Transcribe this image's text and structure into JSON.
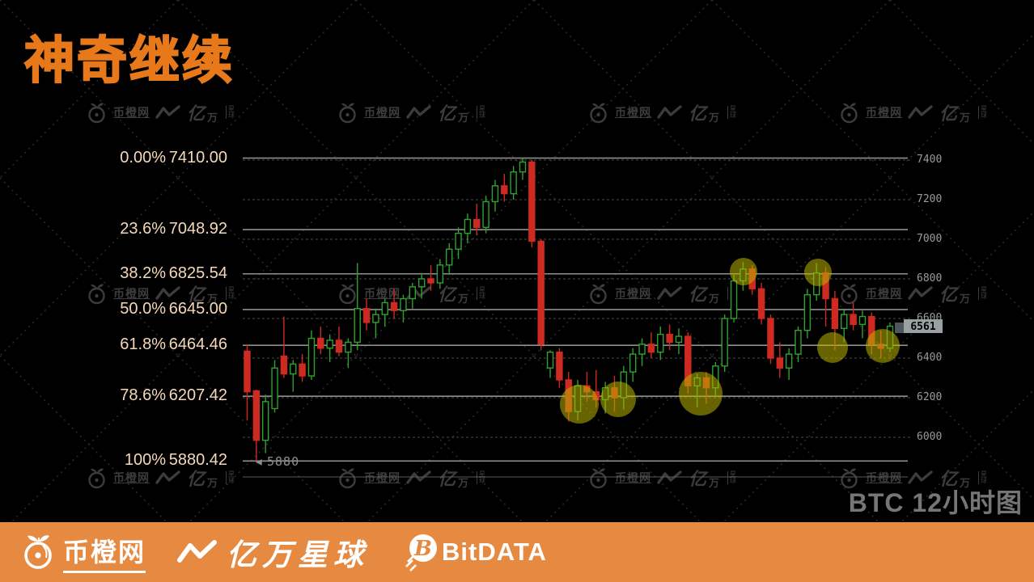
{
  "title": "神奇继续",
  "chart_label": "BTC 12小时图",
  "low_marker": "5880",
  "price_tag": "6561",
  "watermark": {
    "site": "币橙网",
    "yi": "亿",
    "wan": "万",
    "star": "星",
    "qiu": "球"
  },
  "fib_levels": [
    {
      "pct": "0.00%",
      "price": "7410.00",
      "value": 7410.0
    },
    {
      "pct": "23.6%",
      "price": "7048.92",
      "value": 7048.92
    },
    {
      "pct": "38.2%",
      "price": "6825.54",
      "value": 6825.54
    },
    {
      "pct": "50.0%",
      "price": "6645.00",
      "value": 6645.0
    },
    {
      "pct": "61.8%",
      "price": "6464.46",
      "value": 6464.46
    },
    {
      "pct": "78.6%",
      "price": "6207.42",
      "value": 6207.42
    },
    {
      "pct": "100%",
      "price": "5880.42",
      "value": 5880.42
    }
  ],
  "chart_data": {
    "type": "candlestick",
    "symbol": "BTC",
    "interval": "12小时",
    "ylim": [
      5880,
      7410
    ],
    "grid_ticks": [
      7400,
      7200,
      7000,
      6800,
      6600,
      6400,
      6200,
      6000
    ],
    "last_close": 6561,
    "candles": [
      [
        6435,
        6470,
        6085,
        6230
      ],
      [
        6235,
        6240,
        5882,
        5985
      ],
      [
        5985,
        6215,
        5920,
        6180
      ],
      [
        6145,
        6390,
        6125,
        6350
      ],
      [
        6410,
        6610,
        6300,
        6320
      ],
      [
        6320,
        6390,
        6230,
        6370
      ],
      [
        6370,
        6420,
        6280,
        6310
      ],
      [
        6310,
        6540,
        6290,
        6500
      ],
      [
        6500,
        6560,
        6420,
        6450
      ],
      [
        6450,
        6520,
        6380,
        6490
      ],
      [
        6490,
        6560,
        6410,
        6430
      ],
      [
        6430,
        6500,
        6350,
        6480
      ],
      [
        6480,
        6880,
        6440,
        6650
      ],
      [
        6650,
        6700,
        6540,
        6580
      ],
      [
        6580,
        6650,
        6500,
        6620
      ],
      [
        6620,
        6700,
        6560,
        6680
      ],
      [
        6680,
        6750,
        6600,
        6640
      ],
      [
        6640,
        6720,
        6580,
        6700
      ],
      [
        6700,
        6780,
        6650,
        6760
      ],
      [
        6760,
        6830,
        6700,
        6800
      ],
      [
        6800,
        6870,
        6740,
        6780
      ],
      [
        6780,
        6900,
        6750,
        6870
      ],
      [
        6870,
        6980,
        6820,
        6950
      ],
      [
        6950,
        7060,
        6900,
        7030
      ],
      [
        7030,
        7130,
        6980,
        7100
      ],
      [
        7100,
        7180,
        7020,
        7060
      ],
      [
        7060,
        7220,
        7030,
        7190
      ],
      [
        7190,
        7300,
        7140,
        7270
      ],
      [
        7270,
        7330,
        7190,
        7230
      ],
      [
        7230,
        7370,
        7200,
        7340
      ],
      [
        7340,
        7410,
        7300,
        7390
      ],
      [
        7390,
        7400,
        6960,
        6990
      ],
      [
        6990,
        7000,
        6440,
        6470
      ],
      [
        6350,
        6440,
        6300,
        6430
      ],
      [
        6430,
        6450,
        6250,
        6290
      ],
      [
        6290,
        6330,
        6080,
        6130
      ],
      [
        6130,
        6290,
        6085,
        6260
      ],
      [
        6260,
        6330,
        6180,
        6230
      ],
      [
        6230,
        6340,
        6150,
        6190
      ],
      [
        6190,
        6280,
        6120,
        6250
      ],
      [
        6250,
        6310,
        6130,
        6200
      ],
      [
        6200,
        6360,
        6140,
        6330
      ],
      [
        6330,
        6450,
        6280,
        6420
      ],
      [
        6420,
        6500,
        6360,
        6470
      ],
      [
        6470,
        6530,
        6400,
        6430
      ],
      [
        6430,
        6560,
        6390,
        6520
      ],
      [
        6520,
        6570,
        6440,
        6480
      ],
      [
        6480,
        6550,
        6420,
        6510
      ],
      [
        6510,
        6530,
        6220,
        6260
      ],
      [
        6260,
        6320,
        6150,
        6300
      ],
      [
        6300,
        6330,
        6170,
        6250
      ],
      [
        6250,
        6380,
        6200,
        6360
      ],
      [
        6360,
        6620,
        6330,
        6600
      ],
      [
        6600,
        6820,
        6580,
        6790
      ],
      [
        6790,
        6885,
        6740,
        6850
      ],
      [
        6850,
        6870,
        6720,
        6750
      ],
      [
        6750,
        6780,
        6570,
        6600
      ],
      [
        6600,
        6620,
        6370,
        6400
      ],
      [
        6400,
        6480,
        6300,
        6350
      ],
      [
        6350,
        6450,
        6290,
        6420
      ],
      [
        6420,
        6560,
        6380,
        6540
      ],
      [
        6540,
        6750,
        6500,
        6720
      ],
      [
        6720,
        6880,
        6690,
        6830
      ],
      [
        6830,
        6860,
        6560,
        6700
      ],
      [
        6700,
        6740,
        6440,
        6550
      ],
      [
        6550,
        6650,
        6480,
        6620
      ],
      [
        6620,
        6680,
        6540,
        6570
      ],
      [
        6570,
        6640,
        6500,
        6610
      ],
      [
        6610,
        6630,
        6420,
        6470
      ],
      [
        6470,
        6540,
        6400,
        6450
      ],
      [
        6450,
        6580,
        6430,
        6561
      ]
    ],
    "highlight_circles": [
      {
        "x": 716,
        "y": 500,
        "r": 24
      },
      {
        "x": 764,
        "y": 494,
        "r": 22
      },
      {
        "x": 866,
        "y": 487,
        "r": 27
      },
      {
        "x": 919,
        "y": 336,
        "r": 17
      },
      {
        "x": 1011,
        "y": 337,
        "r": 17
      },
      {
        "x": 1029,
        "y": 430,
        "r": 19
      },
      {
        "x": 1091,
        "y": 428,
        "r": 21
      }
    ]
  },
  "footer": {
    "logo_site": "币橙网",
    "logo_star": "亿万星球",
    "logo_bit": "BitDATA"
  },
  "colors": {
    "accent_orange": "#e8791b",
    "footer_bg": "#e78a41",
    "candle_up": "#2fa12f",
    "candle_down": "#cf2a21",
    "fib_label": "#f5d8b8",
    "highlight": "#b9b400",
    "grid_solid": "#8f8f8f",
    "grid_dashed": "#4a4a4a",
    "watermark": "#3c3c3c"
  }
}
